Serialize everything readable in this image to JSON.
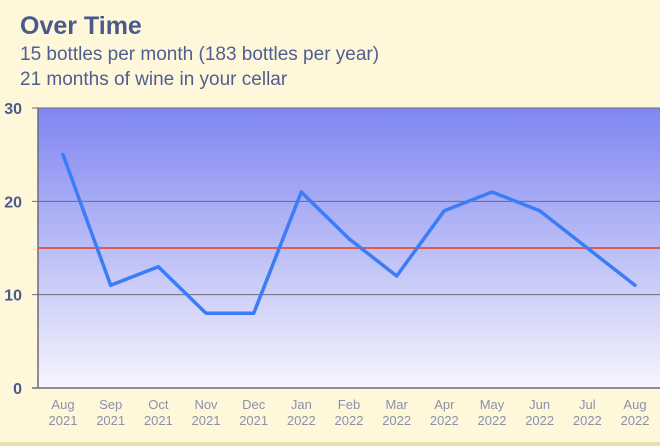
{
  "title": "Over Time",
  "subtitle_line1": "15 bottles per month (183 bottles per year)",
  "subtitle_line2": "21 months of wine in your cellar",
  "colors": {
    "line": "#3b7cf7",
    "reference_line": "#e05a4f",
    "gradient_top": "#7f86f1",
    "gradient_bottom": "#f6f5fc",
    "grid": "#6b6b7a"
  },
  "chart_data": {
    "type": "line",
    "title": "Over Time",
    "xlabel": "",
    "ylabel": "",
    "ylim": [
      0,
      30
    ],
    "yticks": [
      0,
      10,
      20,
      30
    ],
    "grid": true,
    "categories": [
      [
        "Aug",
        "2021"
      ],
      [
        "Sep",
        "2021"
      ],
      [
        "Oct",
        "2021"
      ],
      [
        "Nov",
        "2021"
      ],
      [
        "Dec",
        "2021"
      ],
      [
        "Jan",
        "2022"
      ],
      [
        "Feb",
        "2022"
      ],
      [
        "Mar",
        "2022"
      ],
      [
        "Apr",
        "2022"
      ],
      [
        "May",
        "2022"
      ],
      [
        "Jun",
        "2022"
      ],
      [
        "Jul",
        "2022"
      ],
      [
        "Aug",
        "2022"
      ]
    ],
    "series": [
      {
        "values": [
          25,
          11,
          13,
          8,
          8,
          21,
          16,
          12,
          19,
          21,
          19,
          15,
          11
        ]
      }
    ],
    "reference_line": {
      "value": 15
    }
  }
}
